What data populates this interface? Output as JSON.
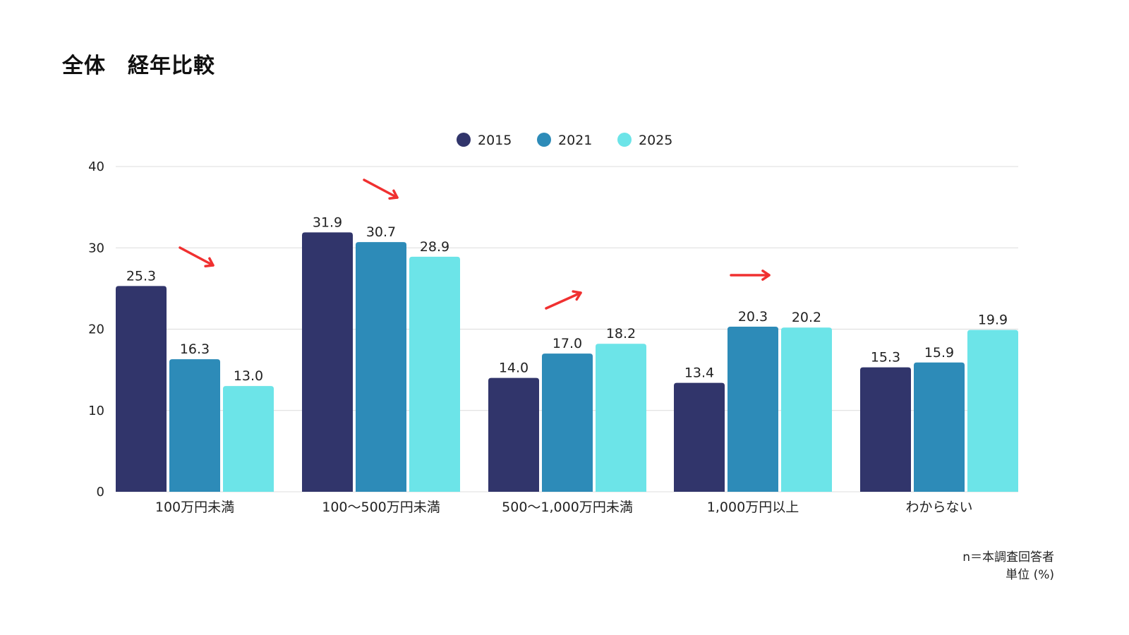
{
  "title": "全体　経年比較",
  "footnote": {
    "line1": "n＝本調査回答者",
    "line2": "単位 (%)"
  },
  "colors": {
    "2015": "#31356b",
    "2021": "#2d8bb8",
    "2025": "#6ce4e8",
    "arrow": "#f03030",
    "grid": "#dcdcdc"
  },
  "chart_data": {
    "type": "bar",
    "title": "全体　経年比較",
    "xlabel": "",
    "ylabel": "",
    "ylim": [
      0,
      40
    ],
    "yticks": [
      "0",
      "10",
      "20",
      "30",
      "40"
    ],
    "grid": true,
    "legend_position": "top-center",
    "categories": [
      "100万円未満",
      "100～500万円未満",
      "500～1,000万円未満",
      "1,000万円以上",
      "わからない"
    ],
    "series": [
      {
        "name": "2015",
        "values": [
          25.3,
          31.9,
          14.0,
          13.4,
          15.3
        ],
        "labels": [
          "25.3",
          "31.9",
          "14.0",
          "13.4",
          "15.3"
        ]
      },
      {
        "name": "2021",
        "values": [
          16.3,
          30.7,
          17.0,
          20.3,
          15.9
        ],
        "labels": [
          "16.3",
          "30.7",
          "17.0",
          "20.3",
          "15.9"
        ]
      },
      {
        "name": "2025",
        "values": [
          13.0,
          28.9,
          18.2,
          20.2,
          19.9
        ],
        "labels": [
          "13.0",
          "28.9",
          "18.2",
          "20.2",
          "19.9"
        ]
      }
    ],
    "annotations": [
      {
        "category": "100万円未満",
        "type": "trend-arrow",
        "direction": "down"
      },
      {
        "category": "100～500万円未満",
        "type": "trend-arrow",
        "direction": "down"
      },
      {
        "category": "500～1,000万円未満",
        "type": "trend-arrow",
        "direction": "up"
      },
      {
        "category": "1,000万円以上",
        "type": "trend-arrow",
        "direction": "flat"
      }
    ]
  }
}
